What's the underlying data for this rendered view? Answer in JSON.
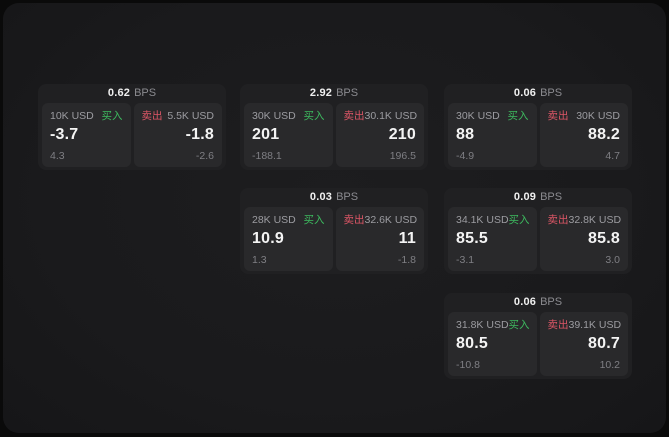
{
  "page": {
    "bps_unit": "BPS",
    "buy_label": "买入",
    "sell_label": "卖出"
  },
  "colors": {
    "buy": "#3dba5f",
    "sell": "#dd5666",
    "card_bg": "#202022",
    "tile_bg": "#29292b"
  },
  "cards": [
    {
      "bps": "0.62",
      "buy": {
        "amount": "10K USD",
        "value": "-3.7",
        "sub": "4.3"
      },
      "sell": {
        "amount": "5.5K USD",
        "value": "-1.8",
        "sub": "-2.6"
      }
    },
    {
      "bps": "2.92",
      "buy": {
        "amount": "30K USD",
        "value": "201",
        "sub": "-188.1"
      },
      "sell": {
        "amount": "30.1K USD",
        "value": "210",
        "sub": "196.5"
      }
    },
    {
      "bps": "0.06",
      "buy": {
        "amount": "30K USD",
        "value": "88",
        "sub": "-4.9"
      },
      "sell": {
        "amount": "30K USD",
        "value": "88.2",
        "sub": "4.7"
      }
    },
    {
      "bps": "0.03",
      "buy": {
        "amount": "28K USD",
        "value": "10.9",
        "sub": "1.3"
      },
      "sell": {
        "amount": "32.6K USD",
        "value": "11",
        "sub": "-1.8"
      }
    },
    {
      "bps": "0.09",
      "buy": {
        "amount": "34.1K USD",
        "value": "85.5",
        "sub": "-3.1"
      },
      "sell": {
        "amount": "32.8K USD",
        "value": "85.8",
        "sub": "3.0"
      }
    },
    {
      "bps": "0.06",
      "buy": {
        "amount": "31.8K USD",
        "value": "80.5",
        "sub": "-10.8"
      },
      "sell": {
        "amount": "39.1K USD",
        "value": "80.7",
        "sub": "10.2"
      }
    }
  ]
}
